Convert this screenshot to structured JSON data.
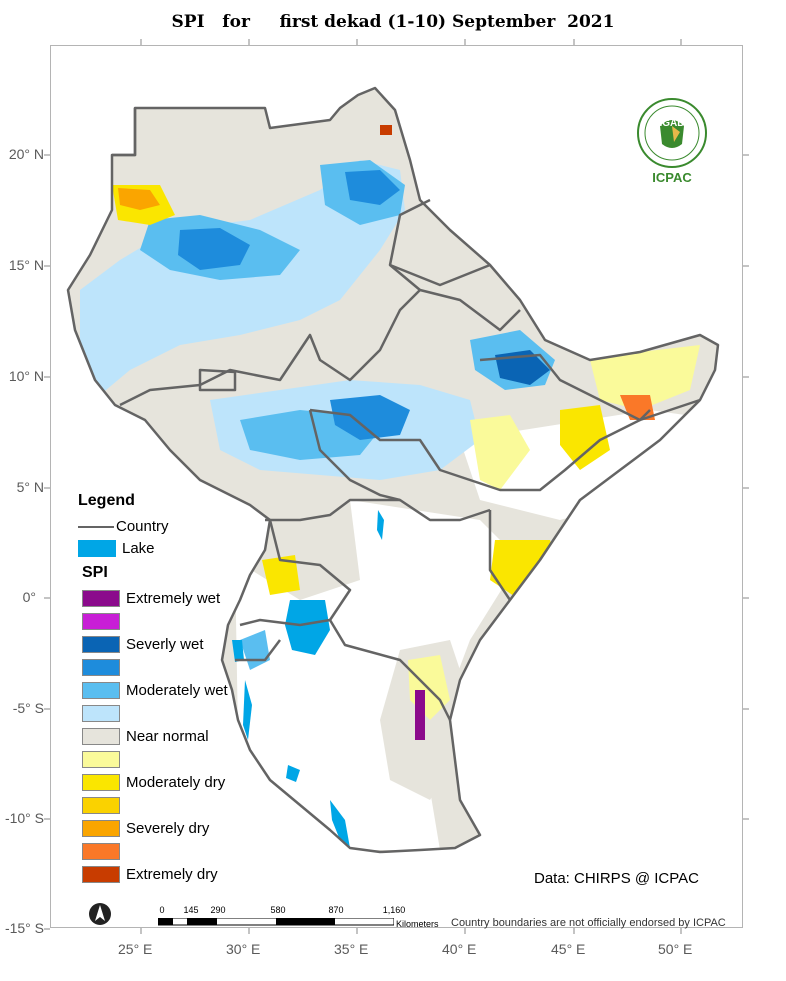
{
  "title": "SPI   for     first dekad (1-10) September  2021",
  "latitudes": [
    "20° N",
    "15° N",
    "10° N",
    "5° N",
    "0°",
    "-5° S",
    "-10° S",
    "-15° S"
  ],
  "longitudes": [
    "25° E",
    "30° E",
    "35° E",
    "40° E",
    "45° E",
    "50° E"
  ],
  "legend": {
    "title": "Legend",
    "country_label": "Country",
    "lake_label": "Lake",
    "lake_color": "#00a6e6",
    "spi_title": "SPI",
    "classes": [
      {
        "label": "Extremely wet",
        "color": "#8b0a8c"
      },
      {
        "label": "",
        "color": "#c81ed6"
      },
      {
        "label": "Severly wet",
        "color": "#0a64b4"
      },
      {
        "label": "",
        "color": "#1e8cdc"
      },
      {
        "label": "Moderately wet",
        "color": "#5abef0"
      },
      {
        "label": "",
        "color": "#bde4fb"
      },
      {
        "label": "Near normal",
        "color": "#e6e4dc"
      },
      {
        "label": "",
        "color": "#fafa9a"
      },
      {
        "label": "Moderately dry",
        "color": "#fae600"
      },
      {
        "label": "",
        "color": "#fad200"
      },
      {
        "label": "Severely dry",
        "color": "#faa500"
      },
      {
        "label": "",
        "color": "#fa7828"
      },
      {
        "label": "Extremely dry",
        "color": "#c83c00"
      }
    ]
  },
  "data_credit": "Data: CHIRPS @ ICPAC",
  "scalebar": {
    "ticks": [
      "0",
      "145",
      "290",
      "580",
      "870",
      "1,160"
    ],
    "unit": "Kilometers"
  },
  "disclaimer": "Country boundaries are not officially endorsed by ICPAC",
  "logo": {
    "acronym": "IGAD",
    "name": "ICPAC",
    "icon": "igad-emblem-icon"
  },
  "north_arrow_icon": "north-arrow-icon",
  "colors": {
    "border": "#646464",
    "frame": "#b4b4b4"
  }
}
